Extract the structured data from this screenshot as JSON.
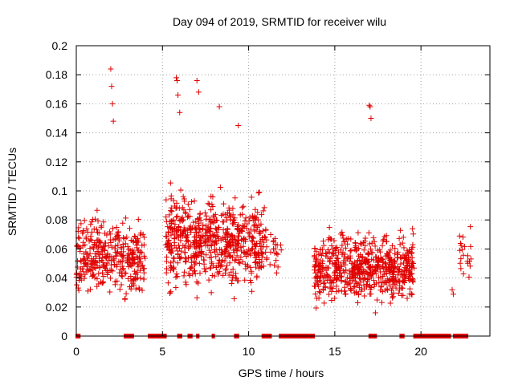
{
  "chart_data": {
    "type": "scatter",
    "title": "Day 094 of 2019, SRMTID for receiver wilu",
    "xlabel": "GPS time / hours",
    "ylabel": "SRMTID / TECUs",
    "xlim": [
      0,
      24
    ],
    "ylim": [
      0,
      0.2
    ],
    "x_ticks": [
      0,
      5,
      10,
      15,
      20
    ],
    "x_tick_labels": [
      "0",
      "5",
      "10",
      "15",
      "20"
    ],
    "y_ticks": [
      0,
      0.02,
      0.04,
      0.06,
      0.08,
      0.1,
      0.12,
      0.14,
      0.16,
      0.18,
      0.2
    ],
    "y_tick_labels": [
      "0",
      "0.02",
      "0.04",
      "0.06",
      "0.08",
      "0.1",
      "0.12",
      "0.14",
      "0.16",
      "0.18",
      "0.2"
    ],
    "grid": true,
    "marker": "+",
    "color": "#e00000",
    "segments": [
      {
        "start": 0.0,
        "end": 4.0,
        "mean": 0.055,
        "spread": 0.025,
        "density": 90
      },
      {
        "start": 4.0,
        "end": 5.2,
        "mean": 0.0,
        "spread": 0.0,
        "density": 0
      },
      {
        "start": 5.2,
        "end": 11.0,
        "mean": 0.065,
        "spread": 0.03,
        "density": 110
      },
      {
        "start": 11.0,
        "end": 11.9,
        "mean": 0.06,
        "spread": 0.015,
        "density": 25
      },
      {
        "start": 13.8,
        "end": 19.6,
        "mean": 0.047,
        "spread": 0.022,
        "density": 110
      },
      {
        "start": 21.7,
        "end": 21.9,
        "mean": 0.032,
        "spread": 0.006,
        "density": 8
      },
      {
        "start": 22.2,
        "end": 22.9,
        "mean": 0.055,
        "spread": 0.02,
        "density": 30
      }
    ],
    "peaks": [
      {
        "x": 2.0,
        "y": 0.184
      },
      {
        "x": 2.05,
        "y": 0.172
      },
      {
        "x": 2.1,
        "y": 0.16
      },
      {
        "x": 2.15,
        "y": 0.148
      },
      {
        "x": 5.8,
        "y": 0.178
      },
      {
        "x": 5.85,
        "y": 0.176
      },
      {
        "x": 5.9,
        "y": 0.166
      },
      {
        "x": 6.0,
        "y": 0.154
      },
      {
        "x": 7.0,
        "y": 0.176
      },
      {
        "x": 7.1,
        "y": 0.168
      },
      {
        "x": 8.3,
        "y": 0.158
      },
      {
        "x": 9.4,
        "y": 0.145
      },
      {
        "x": 17.0,
        "y": 0.159
      },
      {
        "x": 17.05,
        "y": 0.158
      },
      {
        "x": 17.1,
        "y": 0.15
      }
    ],
    "zero_bars": [
      [
        0.0,
        0.2
      ],
      [
        2.8,
        3.3
      ],
      [
        4.2,
        5.2
      ],
      [
        5.9,
        6.1
      ],
      [
        6.5,
        6.7
      ],
      [
        7.0,
        7.1
      ],
      [
        7.9,
        8.0
      ],
      [
        9.2,
        9.4
      ],
      [
        10.8,
        11.3
      ],
      [
        11.8,
        13.8
      ],
      [
        17.0,
        17.4
      ],
      [
        18.8,
        19.0
      ],
      [
        19.6,
        21.7
      ],
      [
        21.9,
        22.7
      ]
    ]
  }
}
